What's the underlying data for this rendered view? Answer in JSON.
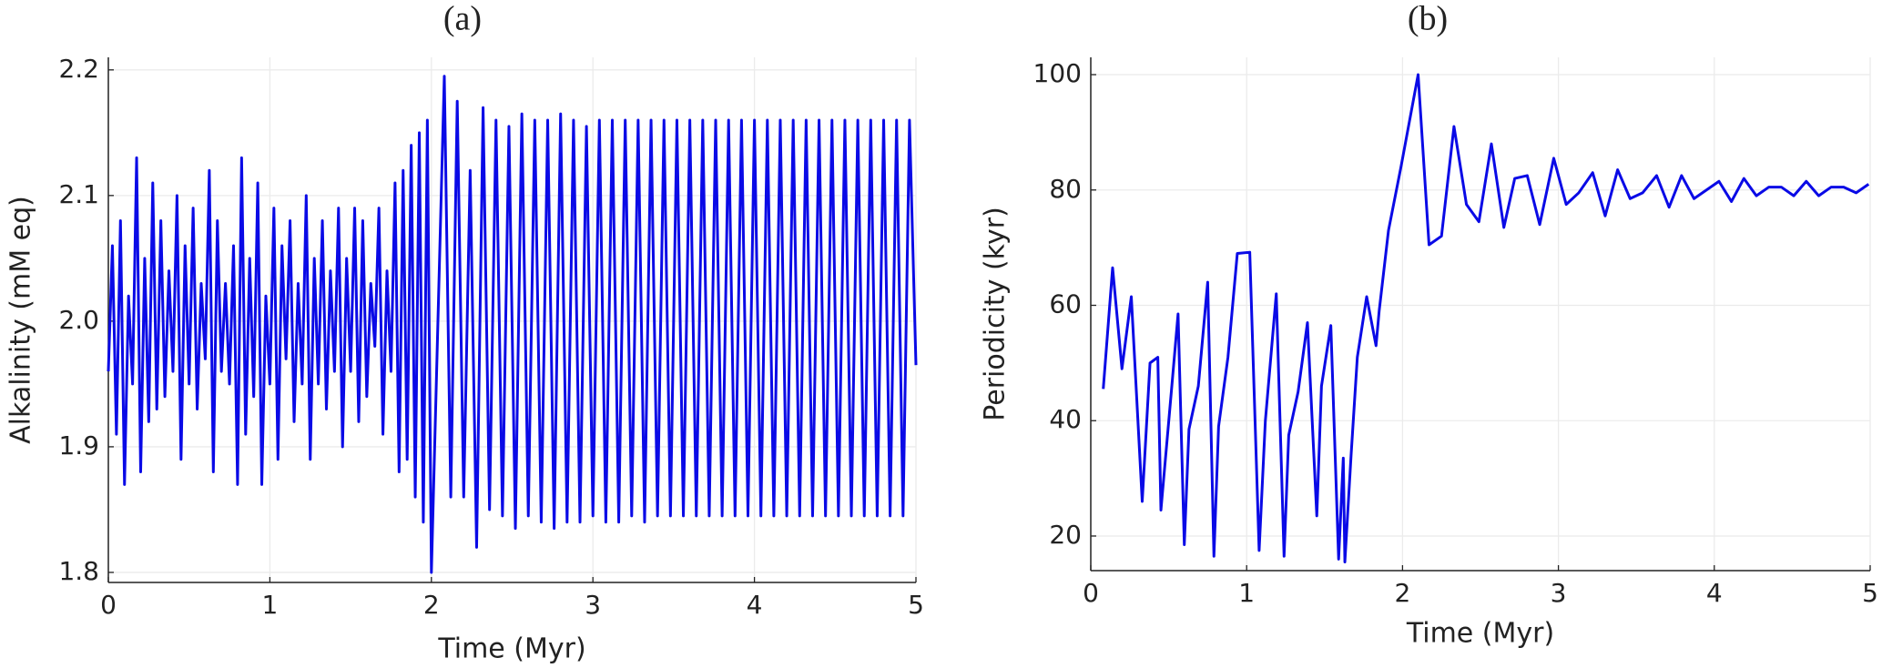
{
  "chart_data": [
    {
      "type": "line",
      "title": "(a)",
      "xlabel": "Time (Myr)",
      "ylabel": "Alkalinity (mM eq)",
      "color": "#0a0ae6",
      "grid": true,
      "xlim": [
        0,
        5
      ],
      "ylim": [
        1.792,
        2.21
      ],
      "xticks": [
        0,
        1,
        2,
        3,
        4,
        5
      ],
      "yticks": [
        1.8,
        1.9,
        {
          "value": 2.0,
          "label": "2.0"
        },
        2.1,
        2.2
      ],
      "x": [
        0,
        0.025,
        0.05,
        0.075,
        0.1,
        0.125,
        0.15,
        0.175,
        0.2,
        0.225,
        0.25,
        0.275,
        0.3,
        0.325,
        0.35,
        0.375,
        0.4,
        0.425,
        0.45,
        0.475,
        0.5,
        0.525,
        0.55,
        0.575,
        0.6,
        0.625,
        0.65,
        0.675,
        0.7,
        0.725,
        0.75,
        0.775,
        0.8,
        0.825,
        0.85,
        0.875,
        0.9,
        0.925,
        0.95,
        0.975,
        1,
        1.025,
        1.05,
        1.075,
        1.1,
        1.125,
        1.15,
        1.175,
        1.2,
        1.225,
        1.25,
        1.275,
        1.3,
        1.325,
        1.35,
        1.375,
        1.4,
        1.425,
        1.45,
        1.475,
        1.5,
        1.525,
        1.55,
        1.575,
        1.6,
        1.625,
        1.65,
        1.675,
        1.7,
        1.725,
        1.75,
        1.775,
        1.8,
        1.825,
        1.85,
        1.875,
        1.9,
        1.925,
        1.95,
        1.975,
        2.0,
        2.08,
        2.12,
        2.16,
        2.2,
        2.24,
        2.28,
        2.32,
        2.36,
        2.4,
        2.44,
        2.48,
        2.52,
        2.56,
        2.6,
        2.64,
        2.68,
        2.72,
        2.76,
        2.8,
        2.84,
        2.88,
        2.92,
        2.96,
        3.0,
        3.04,
        3.08,
        3.12,
        3.16,
        3.2,
        3.24,
        3.28,
        3.32,
        3.36,
        3.4,
        3.44,
        3.48,
        3.52,
        3.56,
        3.6,
        3.64,
        3.68,
        3.72,
        3.76,
        3.8,
        3.84,
        3.88,
        3.92,
        3.96,
        4.0,
        4.04,
        4.08,
        4.12,
        4.16,
        4.2,
        4.24,
        4.28,
        4.32,
        4.36,
        4.4,
        4.44,
        4.48,
        4.52,
        4.56,
        4.6,
        4.64,
        4.68,
        4.72,
        4.76,
        4.8,
        4.84,
        4.88,
        4.92,
        4.96,
        5.0
      ],
      "values": [
        1.96,
        2.06,
        1.91,
        2.08,
        1.87,
        2.02,
        1.95,
        2.13,
        1.88,
        2.05,
        1.92,
        2.11,
        1.93,
        2.08,
        1.94,
        2.04,
        1.96,
        2.1,
        1.89,
        2.06,
        1.95,
        2.09,
        1.93,
        2.03,
        1.97,
        2.12,
        1.88,
        2.08,
        1.96,
        2.03,
        1.95,
        2.06,
        1.87,
        2.13,
        1.91,
        2.05,
        1.94,
        2.11,
        1.87,
        2.02,
        1.95,
        2.09,
        1.89,
        2.06,
        1.97,
        2.08,
        1.92,
        2.03,
        1.95,
        2.1,
        1.89,
        2.05,
        1.95,
        2.08,
        1.93,
        2.04,
        1.96,
        2.09,
        1.9,
        2.05,
        1.96,
        2.09,
        1.92,
        2.08,
        1.94,
        2.03,
        1.98,
        2.09,
        1.91,
        2.04,
        1.96,
        2.11,
        1.88,
        2.12,
        1.89,
        2.14,
        1.86,
        2.15,
        1.84,
        2.16,
        1.8,
        2.195,
        1.86,
        2.175,
        1.86,
        2.12,
        1.82,
        2.17,
        1.85,
        2.16,
        1.845,
        2.155,
        1.835,
        2.165,
        1.845,
        2.16,
        1.84,
        2.16,
        1.835,
        2.165,
        1.84,
        2.16,
        1.84,
        2.155,
        1.845,
        2.16,
        1.84,
        2.16,
        1.84,
        2.16,
        1.845,
        2.16,
        1.84,
        2.16,
        1.845,
        2.16,
        1.845,
        2.16,
        1.845,
        2.16,
        1.845,
        2.16,
        1.845,
        2.16,
        1.845,
        2.16,
        1.845,
        2.16,
        1.845,
        2.16,
        1.845,
        2.16,
        1.845,
        2.16,
        1.845,
        2.16,
        1.845,
        2.16,
        1.845,
        2.16,
        1.845,
        2.16,
        1.845,
        2.16,
        1.845,
        2.16,
        1.845,
        2.16,
        1.845,
        2.16,
        1.845,
        2.16,
        1.845,
        2.16,
        1.965
      ]
    },
    {
      "type": "line",
      "title": "(b)",
      "xlabel": "Time (Myr)",
      "ylabel": "Periodicity (kyr)",
      "color": "#0a0ae6",
      "grid": true,
      "xlim": [
        0,
        5
      ],
      "ylim": [
        14,
        103
      ],
      "xticks": [
        0,
        1,
        2,
        3,
        4,
        5
      ],
      "yticks": [
        20,
        40,
        60,
        80,
        100
      ],
      "x": [
        0.08,
        0.14,
        0.2,
        0.26,
        0.33,
        0.38,
        0.43,
        0.45,
        0.52,
        0.56,
        0.6,
        0.63,
        0.69,
        0.75,
        0.79,
        0.82,
        0.88,
        0.94,
        1.02,
        1.08,
        1.12,
        1.19,
        1.24,
        1.27,
        1.33,
        1.39,
        1.45,
        1.48,
        1.54,
        1.59,
        1.62,
        1.63,
        1.67,
        1.71,
        1.77,
        1.83,
        1.85,
        1.91,
        1.99,
        2.1,
        2.17,
        2.25,
        2.33,
        2.41,
        2.49,
        2.57,
        2.65,
        2.72,
        2.8,
        2.88,
        2.97,
        3.05,
        3.13,
        3.22,
        3.3,
        3.38,
        3.46,
        3.54,
        3.63,
        3.71,
        3.79,
        3.87,
        3.95,
        4.03,
        4.11,
        4.19,
        4.27,
        4.35,
        4.43,
        4.51,
        4.59,
        4.67,
        4.75,
        4.83,
        4.91,
        4.99
      ],
      "values": [
        45.5,
        66.5,
        49,
        61.5,
        26,
        50,
        51,
        24.5,
        46,
        58.5,
        18.5,
        38.5,
        46,
        64,
        16.5,
        39,
        51,
        69,
        69.2,
        17.5,
        40,
        62,
        16.5,
        37.5,
        45,
        57,
        23.5,
        46,
        56.5,
        16,
        33.5,
        15.5,
        34,
        51,
        61.5,
        53,
        59,
        73,
        84,
        100,
        70.5,
        72,
        91,
        77.5,
        74.5,
        88,
        73.5,
        82,
        82.5,
        74,
        85.5,
        77.5,
        79.5,
        83,
        75.5,
        83.5,
        78.5,
        79.5,
        82.5,
        77,
        82.5,
        78.5,
        80,
        81.5,
        78,
        82,
        79,
        80.5,
        80.5,
        79,
        81.5,
        79,
        80.5,
        80.5,
        79.5,
        81
      ]
    }
  ]
}
